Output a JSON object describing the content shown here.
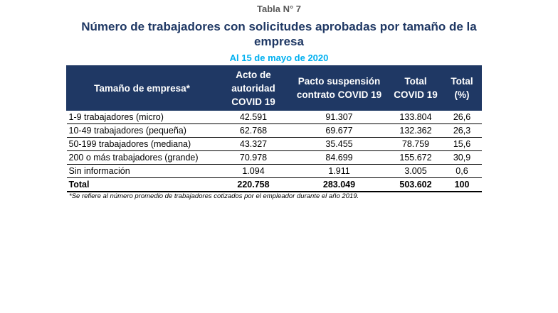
{
  "table_label": "Tabla N° 7",
  "title": "Número de trabajadores con solicitudes aprobadas por tamaño de la empresa",
  "subtitle": "Al 15 de mayo de 2020",
  "table": {
    "headers": [
      "Tamaño de empresa*",
      "Acto de autoridad COVID 19",
      "Pacto suspensión contrato COVID 19",
      "Total COVID 19",
      "Total (%)"
    ],
    "rows": [
      [
        "1-9 trabajadores (micro)",
        "42.591",
        "91.307",
        "133.804",
        "26,6"
      ],
      [
        "10-49 trabajadores (pequeña)",
        "62.768",
        "69.677",
        "132.362",
        "26,3"
      ],
      [
        "50-199 trabajadores (mediana)",
        "43.327",
        "35.455",
        "78.759",
        "15,6"
      ],
      [
        "200 o más trabajadores (grande)",
        "70.978",
        "84.699",
        "155.672",
        "30,9"
      ],
      [
        "Sin información",
        "1.094",
        "1.911",
        "3.005",
        "0,6"
      ]
    ],
    "total_row": [
      "Total",
      "220.758",
      "283.049",
      "503.602",
      "100"
    ]
  },
  "footnote": "*Se refiere al número promedio de trabajadores cotizados por el empleador durante el año 2019.",
  "colors": {
    "header_bg": "#1f3864",
    "title": "#1f3864",
    "subtitle": "#00b0f0"
  }
}
